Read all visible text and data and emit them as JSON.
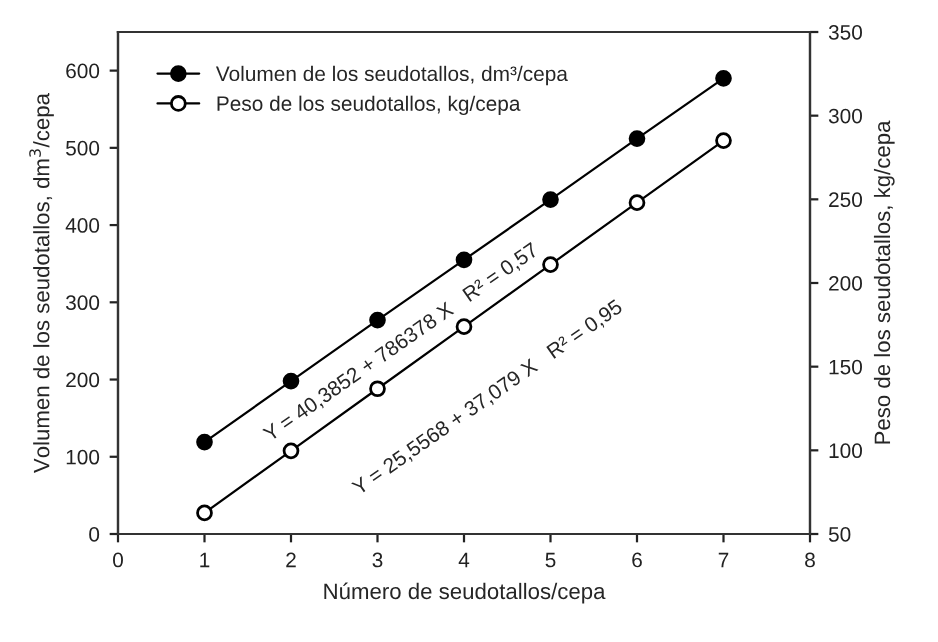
{
  "chart_data": {
    "type": "line",
    "x": [
      1,
      2,
      3,
      4,
      5,
      6,
      7
    ],
    "series": [
      {
        "name": "Volumen de los seudotallos, dm³/cepa",
        "color": "#000000",
        "values": [
          119,
          198,
          277,
          355,
          433,
          512,
          590
        ]
      },
      {
        "name": "Peso de los seudotallos, kg/cepa",
        "color": "#000000",
        "axis": "y2",
        "values": [
          62.6,
          99.7,
          136.8,
          173.9,
          211,
          248,
          285.1
        ]
      }
    ],
    "xlabel": "Número de seudotallos/cepa",
    "ylabel": "Volumen de los seudotallos, dm$^{3}$/cepa",
    "y2label": "Peso de los seudotallos, kg/cepa",
    "annotations": [
      "Y = 40,3852 + 786378 X   R² = 0,57",
      "Y = 25,5568 + 37,079 X   R² = 0,95"
    ],
    "xlim": [
      0,
      8
    ],
    "xticks": [
      0,
      1,
      2,
      3,
      4,
      5,
      6,
      7,
      8
    ],
    "ylim": [
      0,
      650
    ],
    "yticks": [
      0,
      100,
      200,
      300,
      400,
      500,
      600
    ],
    "y2lim": [
      50,
      350
    ],
    "y2ticks": [
      50,
      100,
      150,
      200,
      250,
      300,
      350
    ],
    "marker": "circle",
    "line_style": "solid",
    "legend": "top left",
    "grid": false
  }
}
